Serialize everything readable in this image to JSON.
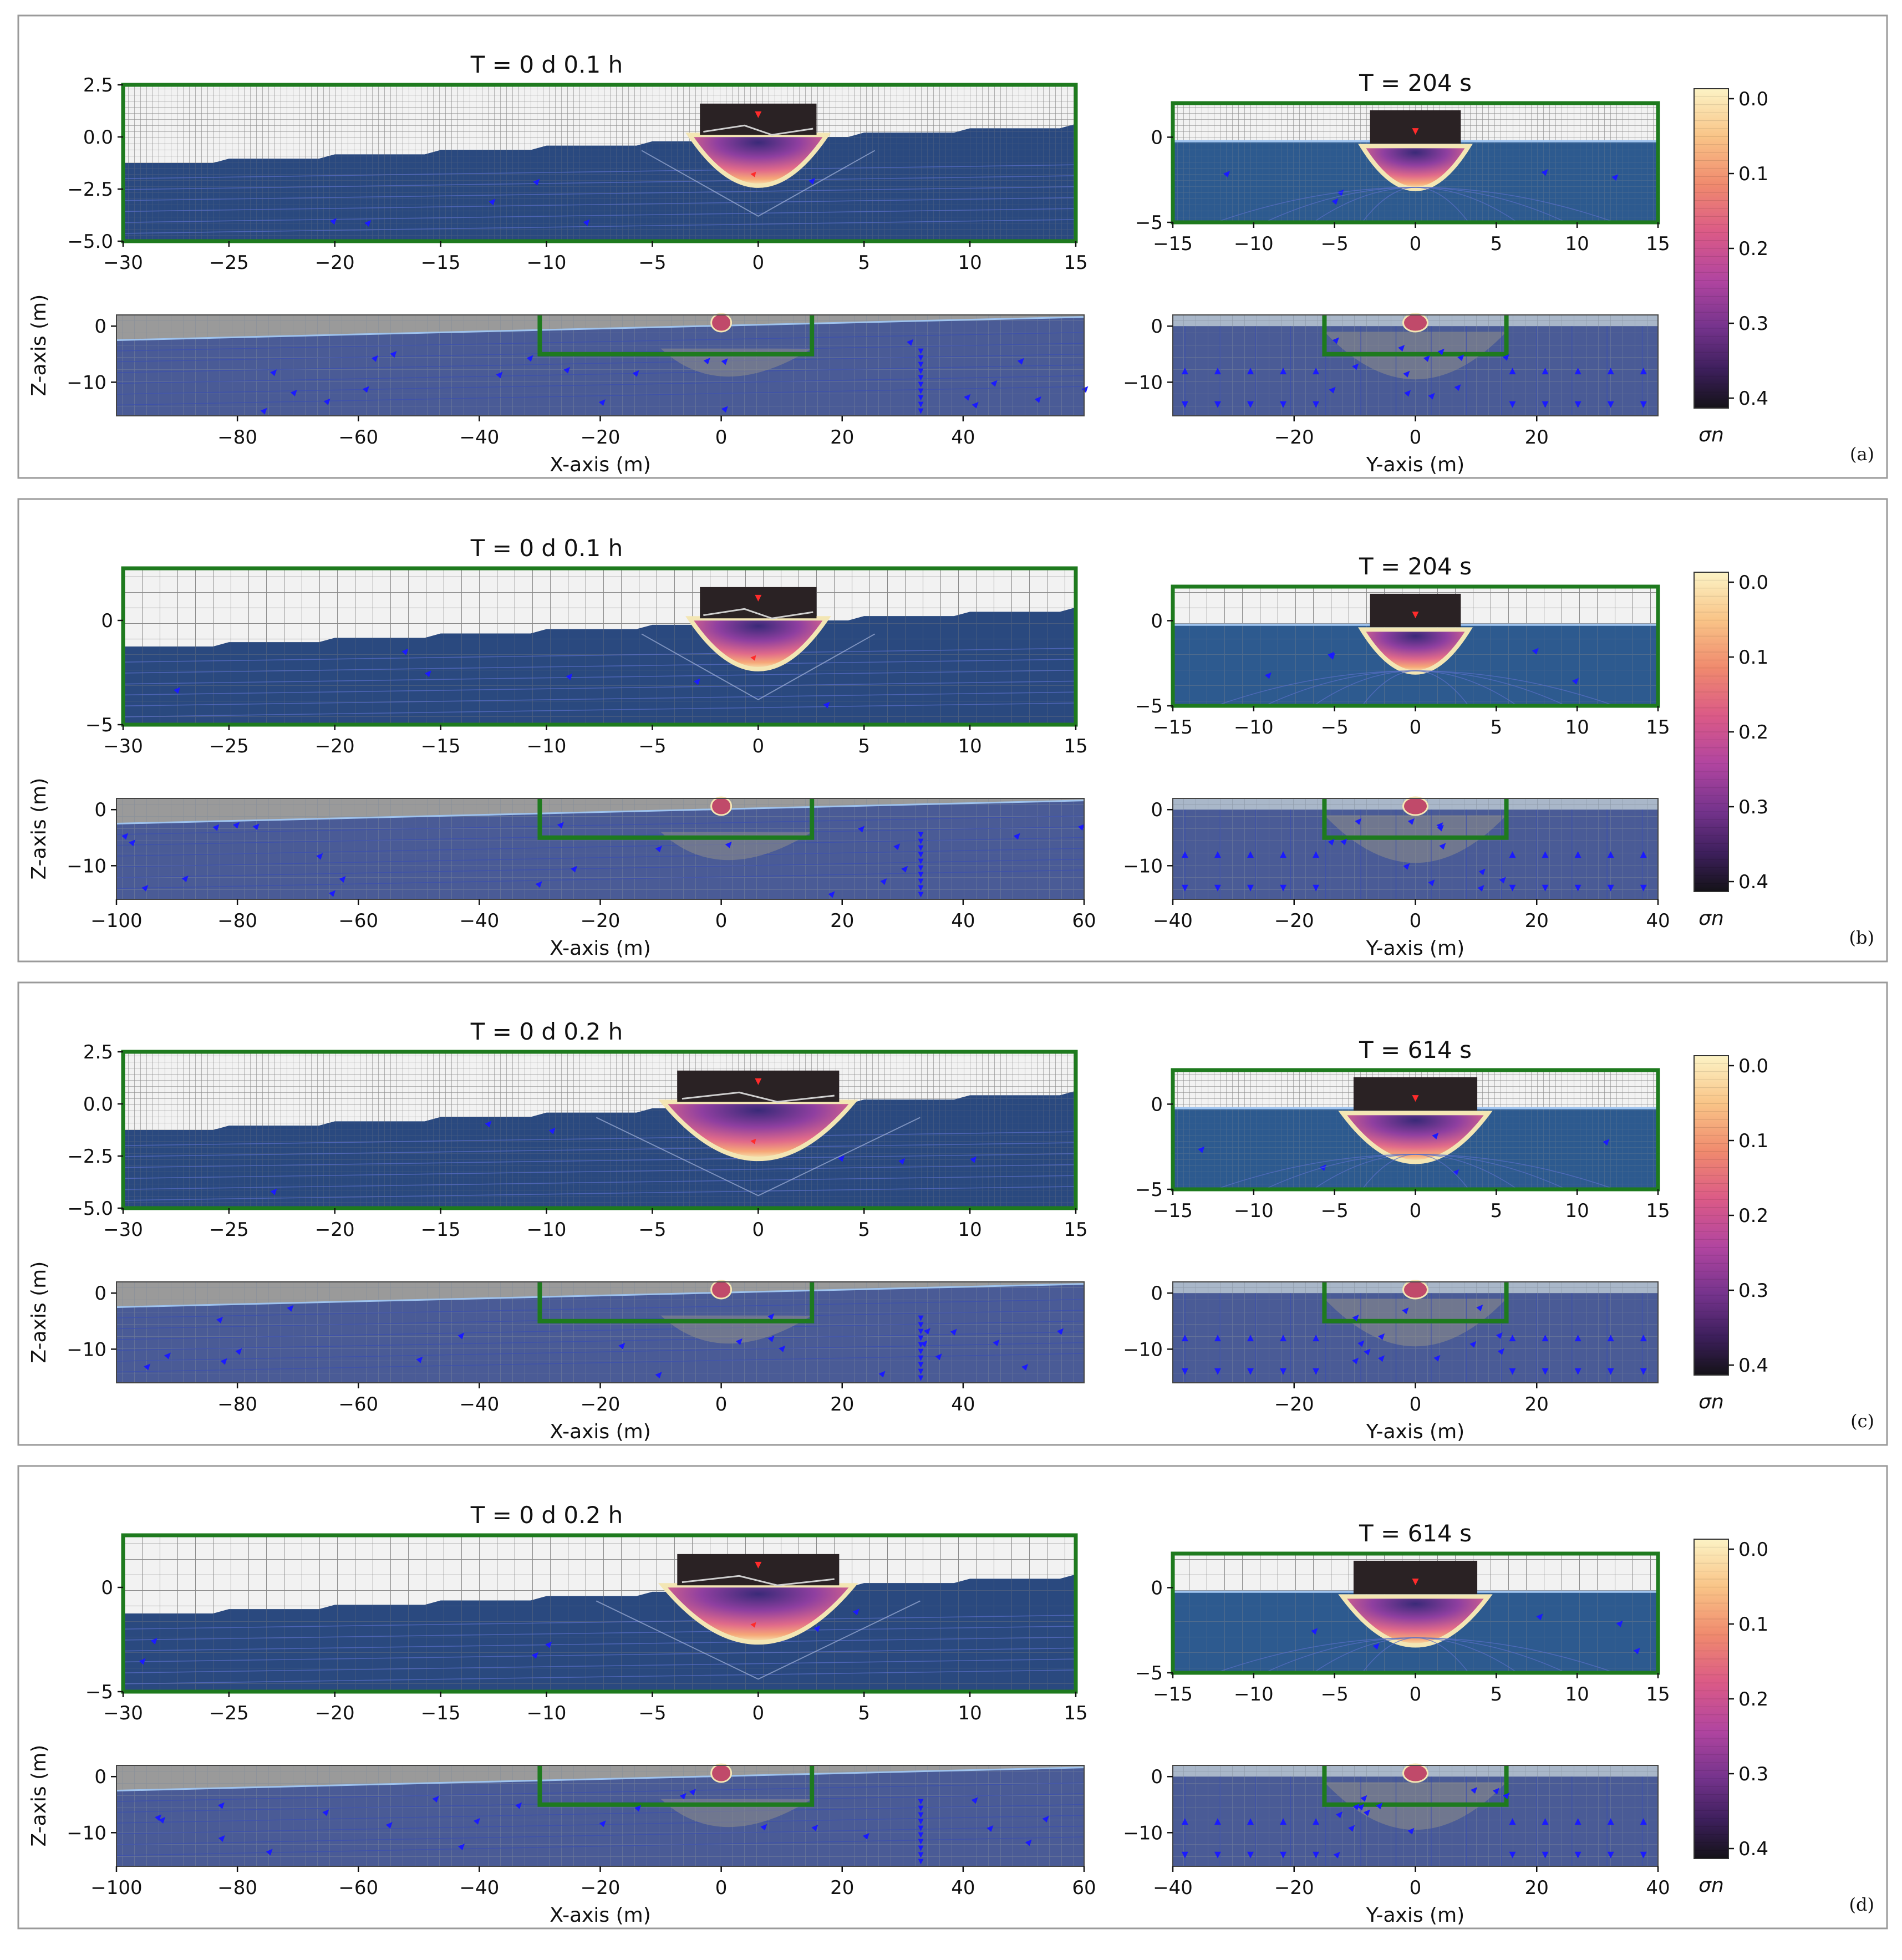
{
  "figure": {
    "colorbar_label": "σn",
    "colors": {
      "air": "#e6e6e6",
      "water": "#1f3f78",
      "domain_box": "#1e7a1e",
      "arrow": "#1a1aff",
      "panel_border": "#9a9a9a",
      "mesh_dark": "#6e7078"
    }
  },
  "chart_data": [
    {
      "panel": "(a)",
      "type": "heatmap",
      "x_section": {
        "title": "T = 0 d  0.1 h",
        "zoom": {
          "xlim": [
            -30,
            15
          ],
          "ylim": [
            -5,
            2.5
          ],
          "xticks": [
            "−30",
            "−25",
            "−20",
            "−15",
            "−10",
            "−5",
            "0",
            "5",
            "10",
            "15"
          ],
          "yticks": [
            "2.5",
            "0.0",
            "−2.5",
            "−5.0"
          ]
        },
        "full": {
          "xlim": [
            -100,
            60
          ],
          "ylim": [
            -16,
            2
          ],
          "xticks": [
            "−80",
            "−60",
            "−40",
            "−20",
            "0",
            "20",
            "40"
          ],
          "yticks": [
            "0",
            "−10"
          ],
          "xlabel": "X-axis (m)",
          "ylabel": "Z-axis (m)"
        }
      },
      "y_section": {
        "title": "T = 204 s",
        "zoom": {
          "xlim": [
            -15,
            15
          ],
          "ylim": [
            -5,
            2
          ],
          "xticks": [
            "−15",
            "−10",
            "−5",
            "0",
            "5",
            "10",
            "15"
          ],
          "yticks": [
            "0",
            "−5"
          ]
        },
        "full": {
          "xlim": [
            -40,
            40
          ],
          "ylim": [
            -16,
            2
          ],
          "xticks": [
            "−20",
            "0",
            "20"
          ],
          "yticks": [
            "0",
            "−10"
          ],
          "xlabel": "Y-axis (m)"
        }
      },
      "colorbar": {
        "ticks": [
          "0.0",
          "0.1",
          "0.2",
          "0.3",
          "0.4"
        ],
        "range": [
          0.0,
          0.4
        ]
      }
    },
    {
      "panel": "(b)",
      "type": "heatmap",
      "x_section": {
        "title": "T = 0 d  0.1 h",
        "zoom": {
          "xlim": [
            -30,
            15
          ],
          "ylim": [
            -5,
            2.5
          ],
          "xticks": [
            "−30",
            "−25",
            "−20",
            "−15",
            "−10",
            "−5",
            "0",
            "5",
            "10",
            "15"
          ],
          "yticks": [
            "0",
            "−5"
          ]
        },
        "full": {
          "xlim": [
            -100,
            60
          ],
          "ylim": [
            -16,
            2
          ],
          "xticks": [
            "−100",
            "−80",
            "−60",
            "−40",
            "−20",
            "0",
            "20",
            "40",
            "60"
          ],
          "yticks": [
            "0",
            "−10"
          ],
          "xlabel": "X-axis (m)",
          "ylabel": "Z-axis (m)"
        }
      },
      "y_section": {
        "title": "T = 204 s",
        "zoom": {
          "xlim": [
            -15,
            15
          ],
          "ylim": [
            -5,
            2
          ],
          "xticks": [
            "−15",
            "−10",
            "−5",
            "0",
            "5",
            "10",
            "15"
          ],
          "yticks": [
            "0",
            "−5"
          ]
        },
        "full": {
          "xlim": [
            -40,
            40
          ],
          "ylim": [
            -16,
            2
          ],
          "xticks": [
            "−40",
            "−20",
            "0",
            "20",
            "40"
          ],
          "yticks": [
            "0",
            "−10"
          ],
          "xlabel": "Y-axis (m)"
        }
      },
      "colorbar": {
        "ticks": [
          "0.0",
          "0.1",
          "0.2",
          "0.3",
          "0.4"
        ],
        "range": [
          0.0,
          0.4
        ]
      }
    },
    {
      "panel": "(c)",
      "type": "heatmap",
      "x_section": {
        "title": "T = 0 d  0.2 h",
        "zoom": {
          "xlim": [
            -30,
            15
          ],
          "ylim": [
            -5,
            2.5
          ],
          "xticks": [
            "−30",
            "−25",
            "−20",
            "−15",
            "−10",
            "−5",
            "0",
            "5",
            "10",
            "15"
          ],
          "yticks": [
            "2.5",
            "0.0",
            "−2.5",
            "−5.0"
          ]
        },
        "full": {
          "xlim": [
            -100,
            60
          ],
          "ylim": [
            -16,
            2
          ],
          "xticks": [
            "−80",
            "−60",
            "−40",
            "−20",
            "0",
            "20",
            "40"
          ],
          "yticks": [
            "0",
            "−10"
          ],
          "xlabel": "X-axis (m)",
          "ylabel": "Z-axis (m)"
        }
      },
      "y_section": {
        "title": "T = 614 s",
        "zoom": {
          "xlim": [
            -15,
            15
          ],
          "ylim": [
            -5,
            2
          ],
          "xticks": [
            "−15",
            "−10",
            "−5",
            "0",
            "5",
            "10",
            "15"
          ],
          "yticks": [
            "0",
            "−5"
          ]
        },
        "full": {
          "xlim": [
            -40,
            40
          ],
          "ylim": [
            -16,
            2
          ],
          "xticks": [
            "−20",
            "0",
            "20"
          ],
          "yticks": [
            "0",
            "−10"
          ],
          "xlabel": "Y-axis (m)"
        }
      },
      "colorbar": {
        "ticks": [
          "0.0",
          "0.1",
          "0.2",
          "0.3",
          "0.4"
        ],
        "range": [
          0.0,
          0.4
        ]
      }
    },
    {
      "panel": "(d)",
      "type": "heatmap",
      "x_section": {
        "title": "T = 0 d  0.2 h",
        "zoom": {
          "xlim": [
            -30,
            15
          ],
          "ylim": [
            -5,
            2.5
          ],
          "xticks": [
            "−30",
            "−25",
            "−20",
            "−15",
            "−10",
            "−5",
            "0",
            "5",
            "10",
            "15"
          ],
          "yticks": [
            "0",
            "−5"
          ]
        },
        "full": {
          "xlim": [
            -100,
            60
          ],
          "ylim": [
            -16,
            2
          ],
          "xticks": [
            "−100",
            "−80",
            "−60",
            "−40",
            "−20",
            "0",
            "20",
            "40",
            "60"
          ],
          "yticks": [
            "0",
            "−10"
          ],
          "xlabel": "X-axis (m)",
          "ylabel": "Z-axis (m)"
        }
      },
      "y_section": {
        "title": "T = 614 s",
        "zoom": {
          "xlim": [
            -15,
            15
          ],
          "ylim": [
            -5,
            2
          ],
          "xticks": [
            "−15",
            "−10",
            "−5",
            "0",
            "5",
            "10",
            "15"
          ],
          "yticks": [
            "0",
            "−5"
          ]
        },
        "full": {
          "xlim": [
            -40,
            40
          ],
          "ylim": [
            -16,
            2
          ],
          "xticks": [
            "−40",
            "−20",
            "0",
            "20",
            "40"
          ],
          "yticks": [
            "0",
            "−10"
          ],
          "xlabel": "Y-axis (m)"
        }
      },
      "colorbar": {
        "ticks": [
          "0.0",
          "0.1",
          "0.2",
          "0.3",
          "0.4"
        ],
        "range": [
          0.0,
          0.4
        ]
      }
    }
  ]
}
